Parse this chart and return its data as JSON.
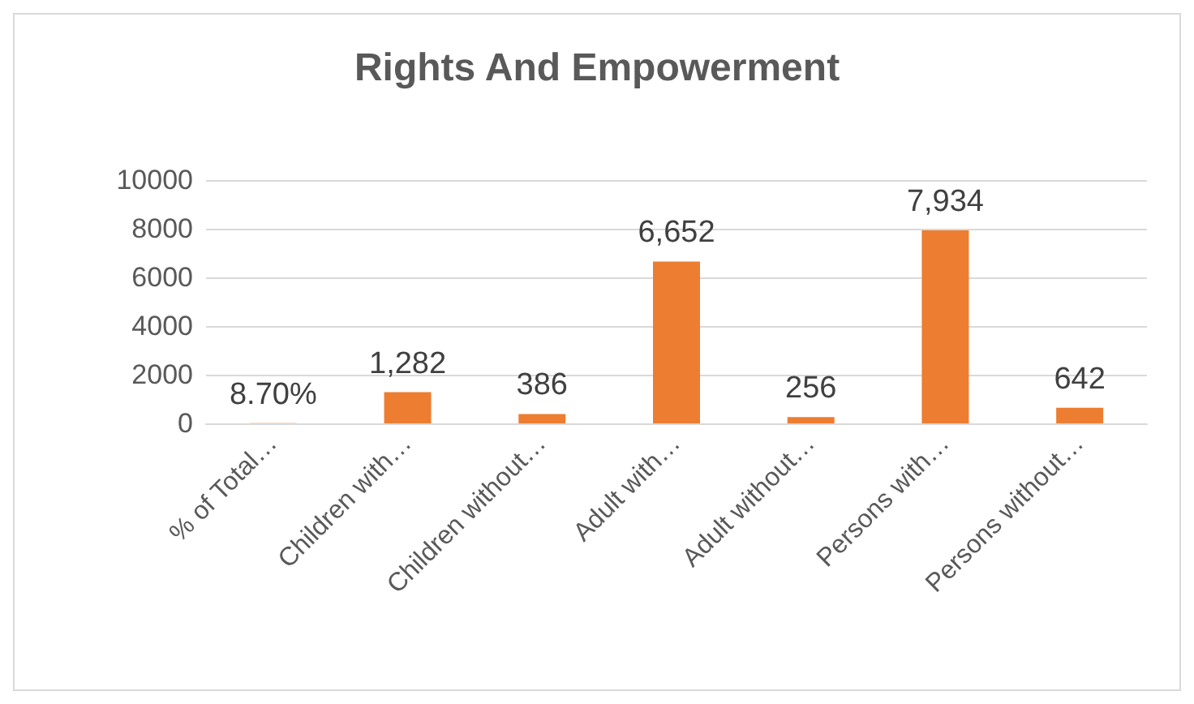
{
  "chart_data": {
    "type": "bar",
    "title": "Rights And Empowerment",
    "categories": [
      "% of Total…",
      "Children with…",
      "Children without…",
      "Adult with…",
      "Adult without…",
      "Persons with…",
      "Persons without…"
    ],
    "values": [
      8.7,
      1282,
      386,
      6652,
      256,
      7934,
      642
    ],
    "value_labels": [
      "8.70%",
      "1,282",
      "386",
      "6,652",
      "256",
      "7,934",
      "642"
    ],
    "color": "#ed7d31",
    "ylim": [
      0,
      10000
    ],
    "yticks": [
      0,
      2000,
      4000,
      6000,
      8000,
      10000
    ],
    "grid": "y"
  }
}
